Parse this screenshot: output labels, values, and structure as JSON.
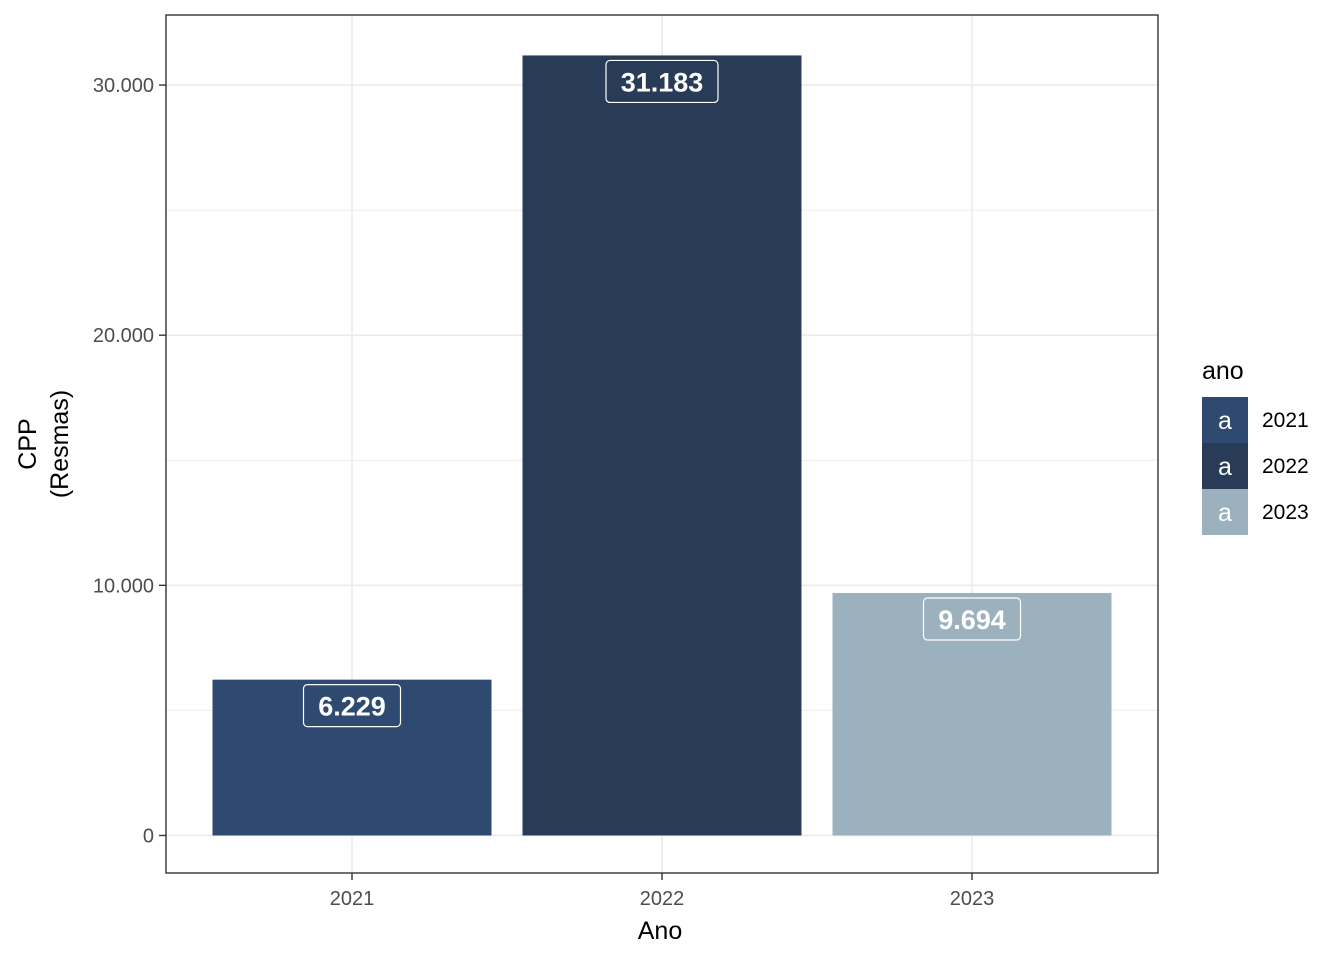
{
  "chart_data": {
    "type": "bar",
    "categories": [
      "2021",
      "2022",
      "2023"
    ],
    "values": [
      6229,
      31183,
      9694
    ],
    "data_labels": [
      "6.229",
      "31.183",
      "9.694"
    ],
    "colors": [
      "#2e4a70",
      "#283c58",
      "#9bb1bd"
    ],
    "xlabel": "Ano",
    "ylabel_lines": [
      "CPP",
      "(Resmas)"
    ],
    "ylim": [
      -1500,
      32800
    ],
    "yticks": [
      0,
      10000,
      20000,
      30000
    ],
    "ytick_labels": [
      "0",
      "10.000",
      "20.000",
      "30.000"
    ],
    "grid": true,
    "legend": {
      "title": "ano",
      "placement": "right",
      "key_glyph": "a",
      "entries": [
        "2021",
        "2022",
        "2023"
      ]
    }
  }
}
